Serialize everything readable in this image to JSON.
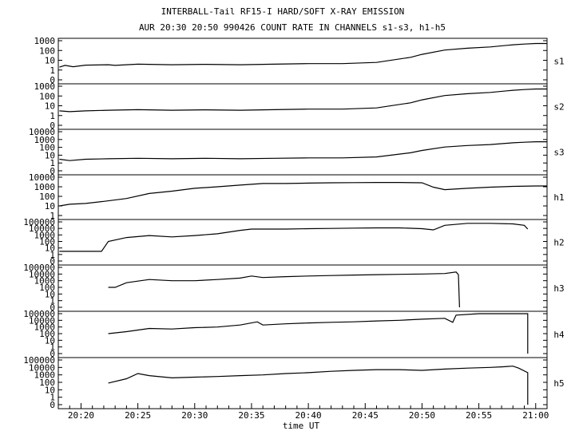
{
  "chart_data": {
    "type": "line",
    "title": "INTERBALL-Tail RF15-I HARD/SOFT X-RAY EMISSION",
    "subtitle": "AUR 20:30 20:50 990426  COUNT RATE IN CHANNELS s1-s3, h1-h5",
    "xlabel": "time UT",
    "x_ticks": [
      "20:20",
      "20:25",
      "20:30",
      "20:35",
      "20:40",
      "20:45",
      "20:50",
      "20:55",
      "21:00"
    ],
    "xlim": [
      "20:18",
      "21:01"
    ],
    "y_scale": "log",
    "panels": [
      {
        "channel": "s1",
        "yticks": [
          "0",
          "1",
          "10",
          "100",
          "1000"
        ],
        "points": [
          [
            18.1,
            2
          ],
          [
            18.6,
            3
          ],
          [
            19.3,
            2.2
          ],
          [
            20.4,
            3.2
          ],
          [
            22.4,
            3.5
          ],
          [
            23,
            3
          ],
          [
            25,
            4
          ],
          [
            28,
            3.5
          ],
          [
            31,
            3.8
          ],
          [
            34,
            3.5
          ],
          [
            37,
            4
          ],
          [
            40,
            4.5
          ],
          [
            43,
            4.5
          ],
          [
            46,
            6
          ],
          [
            49,
            20
          ],
          [
            50,
            40
          ],
          [
            52,
            110
          ],
          [
            54,
            170
          ],
          [
            56,
            230
          ],
          [
            58,
            380
          ],
          [
            59,
            450
          ],
          [
            60,
            520
          ],
          [
            61,
            520
          ]
        ]
      },
      {
        "channel": "s2",
        "yticks": [
          "0",
          "1",
          "10",
          "100",
          "1000"
        ],
        "points": [
          [
            18.1,
            3
          ],
          [
            19,
            2.5
          ],
          [
            20.4,
            3
          ],
          [
            22.4,
            3.5
          ],
          [
            25,
            4
          ],
          [
            28,
            3.5
          ],
          [
            31,
            3.8
          ],
          [
            34,
            3.5
          ],
          [
            37,
            4
          ],
          [
            40,
            4.5
          ],
          [
            43,
            4.5
          ],
          [
            46,
            6
          ],
          [
            49,
            20
          ],
          [
            50,
            40
          ],
          [
            52,
            110
          ],
          [
            54,
            170
          ],
          [
            56,
            230
          ],
          [
            58,
            380
          ],
          [
            59,
            450
          ],
          [
            60,
            520
          ],
          [
            61,
            520
          ]
        ]
      },
      {
        "channel": "s3",
        "yticks": [
          "0",
          "1",
          "10",
          "100",
          "1000",
          "10000"
        ],
        "points": [
          [
            18.1,
            3
          ],
          [
            19,
            2
          ],
          [
            20.4,
            3
          ],
          [
            22.4,
            3.5
          ],
          [
            25,
            4
          ],
          [
            28,
            3.5
          ],
          [
            31,
            4
          ],
          [
            34,
            3.5
          ],
          [
            37,
            4
          ],
          [
            40,
            4.5
          ],
          [
            43,
            4.5
          ],
          [
            46,
            6
          ],
          [
            49,
            20
          ],
          [
            50,
            40
          ],
          [
            52,
            110
          ],
          [
            54,
            170
          ],
          [
            56,
            230
          ],
          [
            58,
            380
          ],
          [
            59,
            450
          ],
          [
            60,
            520
          ],
          [
            61,
            520
          ]
        ]
      },
      {
        "channel": "h1",
        "yticks": [
          "1",
          "10",
          "100",
          "1000",
          "10000"
        ],
        "points": [
          [
            18.1,
            10
          ],
          [
            19,
            15
          ],
          [
            20.4,
            18
          ],
          [
            22,
            30
          ],
          [
            24,
            60
          ],
          [
            26,
            200
          ],
          [
            28,
            350
          ],
          [
            30,
            700
          ],
          [
            32,
            1000
          ],
          [
            34,
            1500
          ],
          [
            36,
            2200
          ],
          [
            38,
            2200
          ],
          [
            40,
            2400
          ],
          [
            42,
            2600
          ],
          [
            44,
            2700
          ],
          [
            46,
            2800
          ],
          [
            48,
            2800
          ],
          [
            50,
            2600
          ],
          [
            51,
            900
          ],
          [
            52,
            500
          ],
          [
            54,
            700
          ],
          [
            56,
            900
          ],
          [
            58,
            1100
          ],
          [
            60,
            1200
          ],
          [
            61,
            1200
          ]
        ]
      },
      {
        "channel": "h2",
        "yticks": [
          "0",
          "1",
          "10",
          "100",
          "1000",
          "10000",
          "100000"
        ],
        "points": [
          [
            18.1,
            3
          ],
          [
            20,
            3
          ],
          [
            21.8,
            3
          ],
          [
            22.4,
            100
          ],
          [
            24,
            400
          ],
          [
            26,
            800
          ],
          [
            28,
            500
          ],
          [
            30,
            800
          ],
          [
            32,
            1500
          ],
          [
            34,
            5000
          ],
          [
            35,
            8000
          ],
          [
            36,
            8000
          ],
          [
            38,
            8000
          ],
          [
            40,
            9000
          ],
          [
            42,
            10000
          ],
          [
            44,
            11000
          ],
          [
            46,
            12000
          ],
          [
            48,
            12000
          ],
          [
            50,
            9000
          ],
          [
            51,
            6000
          ],
          [
            52,
            30000
          ],
          [
            54,
            60000
          ],
          [
            56,
            60000
          ],
          [
            58,
            50000
          ],
          [
            59,
            30000
          ],
          [
            59.3,
            8000
          ]
        ]
      },
      {
        "channel": "h3",
        "yticks": [
          "0",
          "1",
          "10",
          "100",
          "1000",
          "10000",
          "100000"
        ],
        "points": [
          [
            22.4,
            100
          ],
          [
            23,
            100
          ],
          [
            24,
            500
          ],
          [
            26,
            1500
          ],
          [
            28,
            1000
          ],
          [
            30,
            1000
          ],
          [
            32,
            1500
          ],
          [
            34,
            2500
          ],
          [
            35,
            5000
          ],
          [
            36,
            3000
          ],
          [
            38,
            4000
          ],
          [
            40,
            5000
          ],
          [
            42,
            6000
          ],
          [
            44,
            7000
          ],
          [
            46,
            8000
          ],
          [
            48,
            9000
          ],
          [
            50,
            10000
          ],
          [
            52,
            12000
          ],
          [
            53,
            20000
          ],
          [
            53.2,
            8000
          ],
          [
            53.3,
            0
          ]
        ]
      },
      {
        "channel": "h4",
        "yticks": [
          "0",
          "1",
          "10",
          "100",
          "1000",
          "10000",
          "100000"
        ],
        "points": [
          [
            22.4,
            100
          ],
          [
            24,
            200
          ],
          [
            26,
            600
          ],
          [
            28,
            500
          ],
          [
            30,
            800
          ],
          [
            32,
            1000
          ],
          [
            34,
            2000
          ],
          [
            35.5,
            6000
          ],
          [
            36,
            2000
          ],
          [
            38,
            3000
          ],
          [
            40,
            4000
          ],
          [
            42,
            5000
          ],
          [
            44,
            6000
          ],
          [
            46,
            8000
          ],
          [
            48,
            10000
          ],
          [
            50,
            15000
          ],
          [
            52,
            20000
          ],
          [
            52.7,
            5000
          ],
          [
            53,
            60000
          ],
          [
            55,
            100000
          ],
          [
            59.3,
            100000
          ],
          [
            59.3,
            0
          ]
        ]
      },
      {
        "channel": "h5",
        "yticks": [
          "0",
          "1",
          "10",
          "100",
          "1000",
          "10000",
          "100000"
        ],
        "points": [
          [
            22.4,
            80
          ],
          [
            24,
            300
          ],
          [
            25,
            1500
          ],
          [
            26,
            800
          ],
          [
            28,
            400
          ],
          [
            30,
            500
          ],
          [
            32,
            600
          ],
          [
            34,
            800
          ],
          [
            36,
            1000
          ],
          [
            38,
            1500
          ],
          [
            40,
            2000
          ],
          [
            42,
            3000
          ],
          [
            44,
            4000
          ],
          [
            46,
            5000
          ],
          [
            48,
            5000
          ],
          [
            50,
            4000
          ],
          [
            52,
            6000
          ],
          [
            54,
            8000
          ],
          [
            56,
            10000
          ],
          [
            57,
            12000
          ],
          [
            58,
            15000
          ],
          [
            58.5,
            8000
          ],
          [
            59.3,
            2000
          ],
          [
            59.3,
            0
          ]
        ]
      }
    ]
  }
}
